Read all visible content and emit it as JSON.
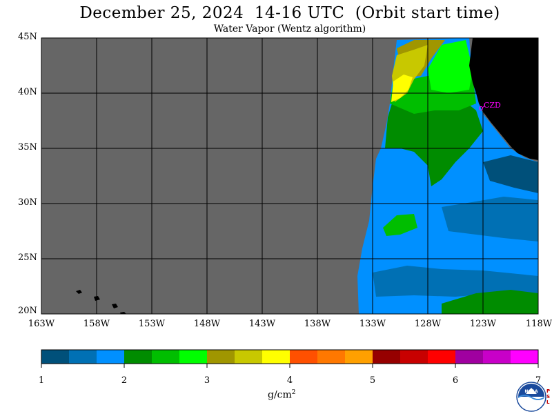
{
  "header": {
    "title": "December 25, 2024  14-16 UTC  (Orbit start time)",
    "subtitle": "Water Vapor (Wentz algorithm)"
  },
  "map": {
    "lat_labels": [
      "45N",
      "40N",
      "35N",
      "30N",
      "25N",
      "20N"
    ],
    "lon_labels": [
      "163W",
      "158W",
      "153W",
      "148W",
      "143W",
      "138W",
      "133W",
      "128W",
      "123W",
      "118W"
    ],
    "lat_range": [
      20,
      45
    ],
    "lon_range": [
      -163,
      -118
    ],
    "station_label": "CZD",
    "colors": {
      "no_data": "#666666",
      "land": "#000000",
      "station": "#ff00ff"
    }
  },
  "colorbar": {
    "tick_labels": [
      "1",
      "2",
      "3",
      "4",
      "5",
      "6",
      "7"
    ],
    "units_base": "g/cm",
    "units_exp": "2",
    "colors": [
      "#00507a",
      "#0070b4",
      "#0090ff",
      "#008c00",
      "#00be00",
      "#00ff00",
      "#a09600",
      "#c8c800",
      "#ffff00",
      "#ff5000",
      "#ff7800",
      "#ffa000",
      "#960000",
      "#c80000",
      "#ff0000",
      "#a000a0",
      "#c800c8",
      "#ff00ff"
    ]
  },
  "logo": {
    "name": "NOAA",
    "side_text": "PSL"
  }
}
